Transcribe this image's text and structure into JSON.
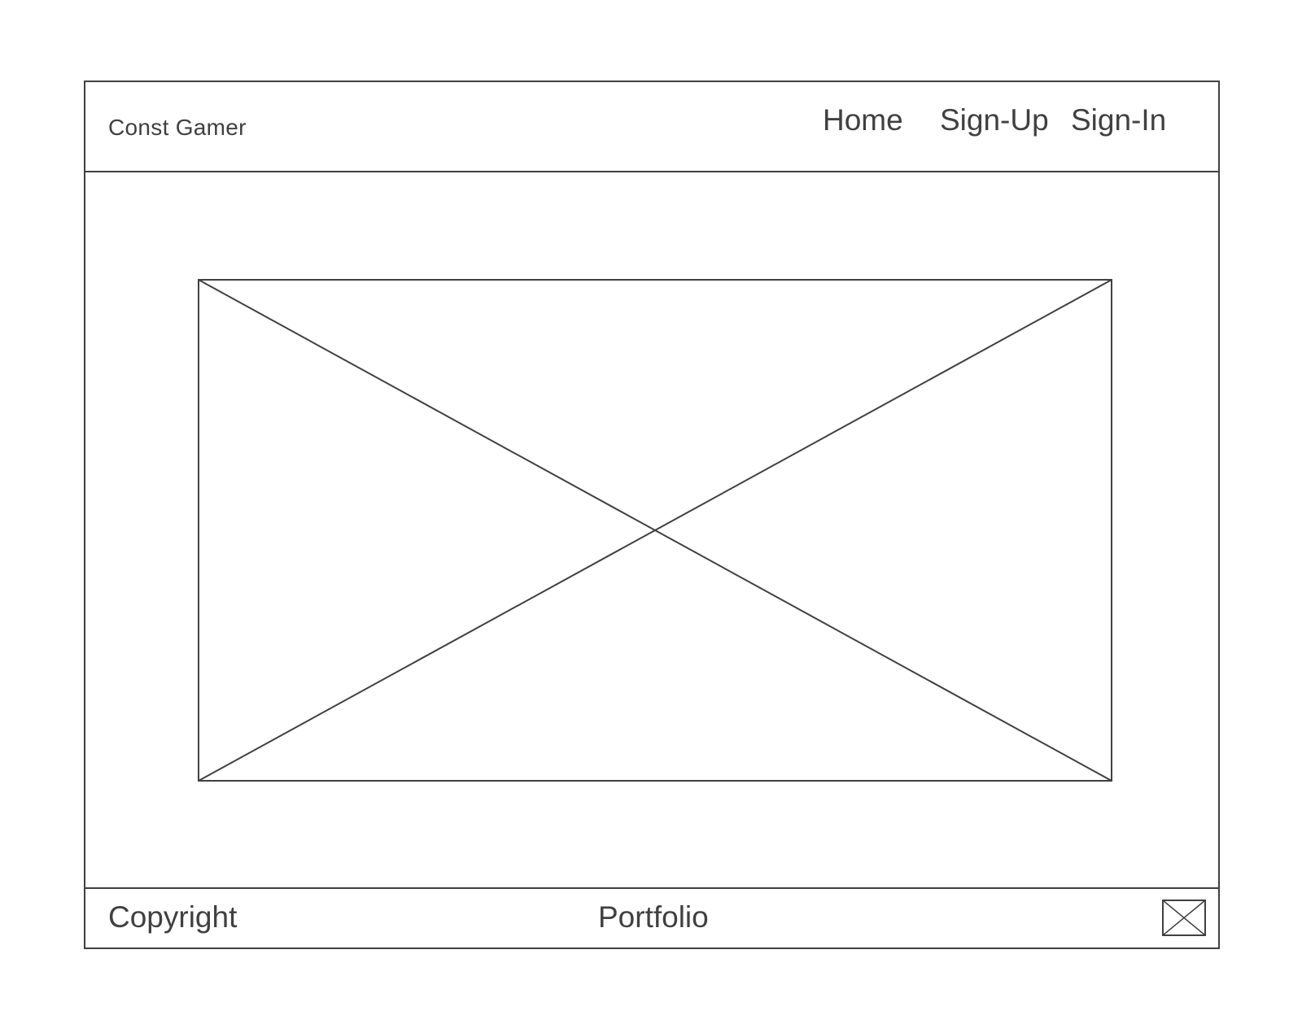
{
  "header": {
    "brand": "Const Gamer",
    "nav": {
      "home": "Home",
      "signup": "Sign-Up",
      "signin": "Sign-In"
    }
  },
  "hero": {
    "icon": "image-placeholder-icon"
  },
  "footer": {
    "copyright": "Copyright",
    "portfolio": "Portfolio",
    "icon": "image-placeholder-icon"
  },
  "colors": {
    "line": "#404040",
    "background": "#ffffff"
  }
}
